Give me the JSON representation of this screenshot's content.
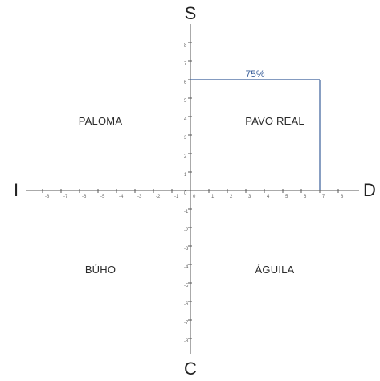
{
  "poles": {
    "top": "S",
    "bottom": "C",
    "left": "I",
    "right": "D"
  },
  "quadrants": {
    "top_left": "PALOMA",
    "top_right": "PAVO REAL",
    "bottom_left": "BÚHO",
    "bottom_right": "ÁGUILA"
  },
  "axis": {
    "x_range": [
      -8,
      8
    ],
    "y_range": [
      -8,
      8
    ],
    "x_tick_labels": [
      "-8",
      "-7",
      "-6",
      "-5",
      "-4",
      "-3",
      "-2",
      "-1",
      "0",
      "1",
      "2",
      "3",
      "4",
      "5",
      "6",
      "7",
      "8"
    ],
    "y_tick_labels": [
      "8",
      "7",
      "6",
      "5",
      "4",
      "3",
      "2",
      "1",
      "0",
      "-1",
      "-2",
      "-3",
      "-4",
      "-5",
      "-6",
      "-7",
      "-8"
    ]
  },
  "result": {
    "label": "75%",
    "x": 7,
    "y": 6,
    "color": "#3a5f9a"
  },
  "colors": {
    "axis": "#555555",
    "result_line": "#3a5f9a"
  }
}
